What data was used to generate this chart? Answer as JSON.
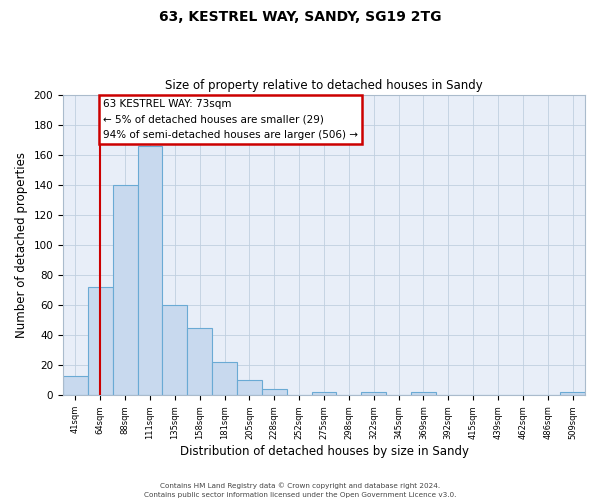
{
  "title": "63, KESTREL WAY, SANDY, SG19 2TG",
  "subtitle": "Size of property relative to detached houses in Sandy",
  "xlabel": "Distribution of detached houses by size in Sandy",
  "ylabel": "Number of detached properties",
  "bin_labels": [
    "41sqm",
    "64sqm",
    "88sqm",
    "111sqm",
    "135sqm",
    "158sqm",
    "181sqm",
    "205sqm",
    "228sqm",
    "252sqm",
    "275sqm",
    "298sqm",
    "322sqm",
    "345sqm",
    "369sqm",
    "392sqm",
    "415sqm",
    "439sqm",
    "462sqm",
    "486sqm",
    "509sqm"
  ],
  "bar_values": [
    13,
    72,
    140,
    166,
    60,
    45,
    22,
    10,
    4,
    0,
    2,
    0,
    2,
    0,
    2,
    0,
    0,
    0,
    0,
    0,
    2
  ],
  "bar_color": "#c8d9ee",
  "bar_edge_color": "#6aaad4",
  "vline_x": 1,
  "vline_color": "#cc0000",
  "annotation_title": "63 KESTREL WAY: 73sqm",
  "annotation_line1": "← 5% of detached houses are smaller (29)",
  "annotation_line2": "94% of semi-detached houses are larger (506) →",
  "annotation_box_color": "#ffffff",
  "annotation_box_edge": "#cc0000",
  "ylim": [
    0,
    200
  ],
  "yticks": [
    0,
    20,
    40,
    60,
    80,
    100,
    120,
    140,
    160,
    180,
    200
  ],
  "footer1": "Contains HM Land Registry data © Crown copyright and database right 2024.",
  "footer2": "Contains public sector information licensed under the Open Government Licence v3.0.",
  "bg_color": "#ffffff",
  "plot_bg_color": "#e8eef8",
  "grid_color": "#c0cfe0",
  "title_fontsize": 10,
  "subtitle_fontsize": 8.5
}
